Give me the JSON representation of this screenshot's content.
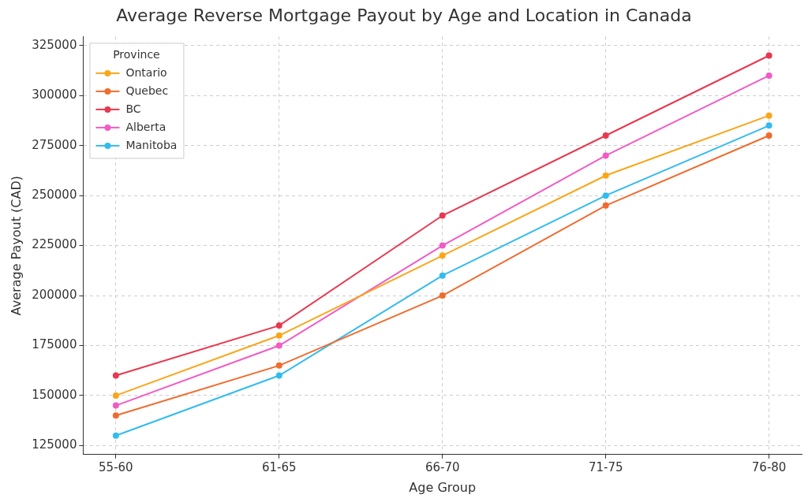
{
  "chart_data": {
    "type": "line",
    "title": "Average Reverse Mortgage Payout by Age and Location in Canada",
    "x_label": "Age Group",
    "y_label": "Average Payout (CAD)",
    "categories": [
      "55-60",
      "61-65",
      "66-70",
      "71-75",
      "76-80"
    ],
    "series": [
      {
        "name": "Ontario",
        "color": "#f9a61a",
        "values": [
          150000,
          180000,
          220000,
          260000,
          290000
        ]
      },
      {
        "name": "Quebec",
        "color": "#ef6c2e",
        "values": [
          140000,
          165000,
          200000,
          245000,
          280000
        ]
      },
      {
        "name": "BC",
        "color": "#e8384f",
        "values": [
          160000,
          185000,
          240000,
          280000,
          320000
        ]
      },
      {
        "name": "Alberta",
        "color": "#f25bc5",
        "values": [
          145000,
          175000,
          225000,
          270000,
          310000
        ]
      },
      {
        "name": "Manitoba",
        "color": "#33bbee",
        "values": [
          130000,
          160000,
          210000,
          250000,
          285000
        ]
      }
    ],
    "ylim": [
      120500,
      329500
    ],
    "yticks": [
      125000,
      150000,
      175000,
      200000,
      225000,
      250000,
      275000,
      300000,
      325000
    ],
    "grid": true,
    "marker": "circle",
    "legend": "upper left",
    "legend_title": "Province"
  }
}
